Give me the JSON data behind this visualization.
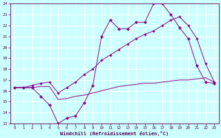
{
  "line1_x": [
    0,
    1,
    2,
    3,
    4,
    5,
    6,
    7,
    8,
    9,
    10,
    11,
    12,
    13,
    14,
    15,
    16,
    17,
    18,
    19,
    20,
    21,
    22,
    23
  ],
  "line1_y": [
    16.3,
    16.3,
    16.3,
    15.5,
    14.7,
    13.0,
    13.5,
    13.7,
    14.9,
    16.5,
    21.0,
    22.5,
    21.7,
    21.7,
    22.3,
    22.3,
    24.0,
    24.0,
    23.0,
    21.8,
    20.8,
    18.3,
    16.8,
    16.7
  ],
  "line2_x": [
    0,
    1,
    2,
    3,
    4,
    5,
    6,
    7,
    8,
    9,
    10,
    11,
    12,
    13,
    14,
    15,
    16,
    17,
    18,
    19,
    20,
    21,
    22,
    23
  ],
  "line2_y": [
    16.3,
    16.3,
    16.3,
    16.4,
    16.4,
    15.2,
    15.3,
    15.5,
    15.6,
    15.8,
    16.0,
    16.2,
    16.4,
    16.5,
    16.6,
    16.7,
    16.7,
    16.8,
    16.9,
    17.0,
    17.0,
    17.1,
    17.2,
    16.8
  ],
  "line3_x": [
    0,
    1,
    2,
    3,
    4,
    5,
    6,
    7,
    8,
    9,
    10,
    11,
    12,
    13,
    14,
    15,
    16,
    17,
    18,
    19,
    20,
    21,
    22,
    23
  ],
  "line3_y": [
    16.3,
    16.3,
    16.5,
    16.7,
    16.8,
    15.8,
    16.3,
    16.8,
    17.5,
    18.0,
    18.8,
    19.3,
    19.8,
    20.3,
    20.8,
    21.2,
    21.5,
    22.0,
    22.5,
    22.8,
    22.0,
    20.8,
    18.5,
    16.8
  ],
  "color": "#880088",
  "bg_color": "#ccffff",
  "grid_color": "#aadddd",
  "xlabel": "Windchill (Refroidissement éolien,°C)",
  "ylim": [
    13,
    24
  ],
  "xlim": [
    -0.5,
    23.5
  ],
  "yticks": [
    13,
    14,
    15,
    16,
    17,
    18,
    19,
    20,
    21,
    22,
    23,
    24
  ],
  "xticks": [
    0,
    1,
    2,
    3,
    4,
    5,
    6,
    7,
    8,
    9,
    10,
    11,
    12,
    13,
    14,
    15,
    16,
    17,
    18,
    19,
    20,
    21,
    22,
    23
  ]
}
